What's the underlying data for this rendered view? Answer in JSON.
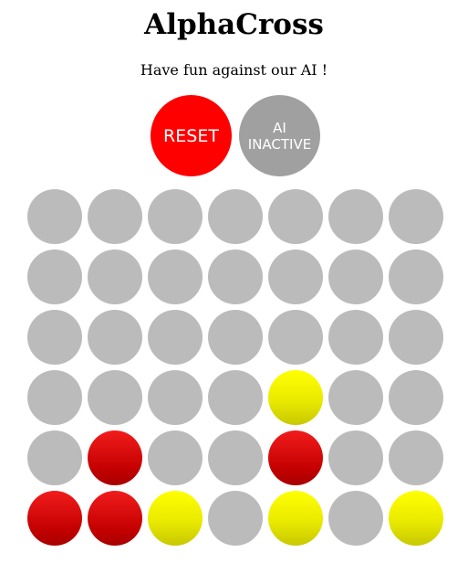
{
  "title": "AlphaCross",
  "subtitle": "Have fun against our AI !",
  "buttons": {
    "reset_label": "RESET",
    "ai_label_line1": "AI",
    "ai_label_line2": "INACTIVE"
  },
  "colors": {
    "reset_button": "#ff0000",
    "ai_button_inactive": "#a0a0a0",
    "empty_cell": "#bbbbbb",
    "red_piece": "#d40d0d",
    "yellow_piece": "#f0f000"
  },
  "board": {
    "columns": 7,
    "rows": 6,
    "cells": [
      [
        "empty",
        "empty",
        "empty",
        "empty",
        "empty",
        "empty",
        "empty"
      ],
      [
        "empty",
        "empty",
        "empty",
        "empty",
        "empty",
        "empty",
        "empty"
      ],
      [
        "empty",
        "empty",
        "empty",
        "empty",
        "empty",
        "empty",
        "empty"
      ],
      [
        "empty",
        "empty",
        "empty",
        "empty",
        "yellow",
        "empty",
        "empty"
      ],
      [
        "empty",
        "red",
        "empty",
        "empty",
        "red",
        "empty",
        "empty"
      ],
      [
        "red",
        "red",
        "yellow",
        "empty",
        "yellow",
        "empty",
        "yellow"
      ]
    ]
  }
}
